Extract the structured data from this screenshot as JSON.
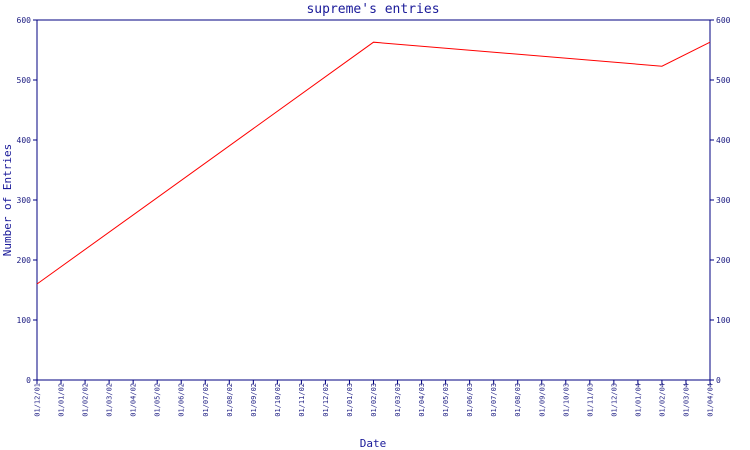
{
  "chart_data": {
    "type": "line",
    "title": "supreme's entries",
    "xlabel": "Date",
    "ylabel": "Number of Entries",
    "ylim": [
      0,
      600
    ],
    "yticks": [
      0,
      100,
      200,
      300,
      400,
      500,
      600
    ],
    "categories": [
      "01/12/01",
      "01/01/02",
      "01/02/02",
      "01/03/02",
      "01/04/02",
      "01/05/02",
      "01/06/02",
      "01/07/02",
      "01/08/02",
      "01/09/02",
      "01/10/02",
      "01/11/02",
      "01/12/02",
      "01/01/03",
      "01/02/03",
      "01/03/03",
      "01/04/03",
      "01/05/03",
      "01/06/03",
      "01/07/03",
      "01/08/03",
      "01/09/03",
      "01/10/03",
      "01/11/03",
      "01/12/03",
      "01/01/04",
      "01/02/04",
      "01/03/04",
      "01/04/04"
    ],
    "points": [
      {
        "x": "01/12/01",
        "y": 160
      },
      {
        "x": "01/02/03",
        "y": 563
      },
      {
        "x": "01/02/04",
        "y": 523
      },
      {
        "x": "01/04/04",
        "y": 563
      }
    ],
    "line_color": "#ff0000",
    "axis_color": "#000080",
    "grid": false,
    "right_axis": true
  }
}
